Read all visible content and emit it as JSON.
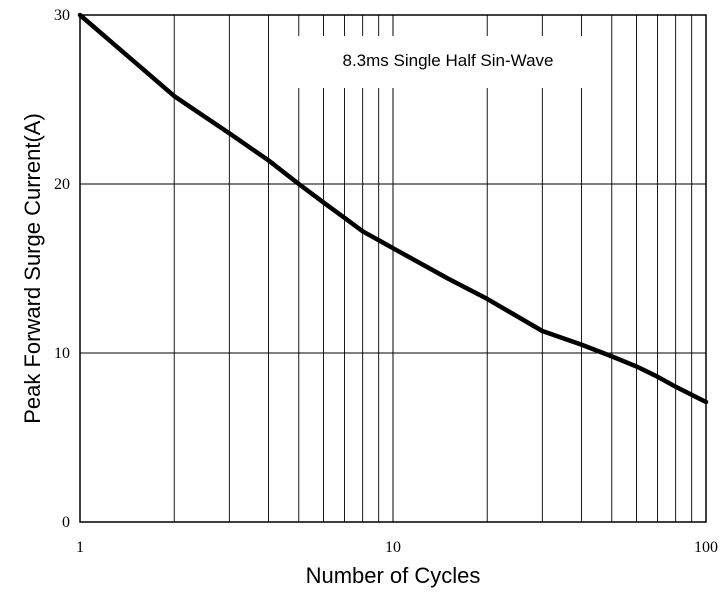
{
  "chart_data": {
    "type": "line",
    "xscale": "log",
    "xlim": [
      1,
      100
    ],
    "ylim": [
      0,
      30
    ],
    "x_ticks": [
      1,
      10,
      100
    ],
    "x_tick_labels": [
      "1",
      "10",
      "100"
    ],
    "y_ticks": [
      0,
      10,
      20,
      30
    ],
    "y_tick_labels": [
      "0",
      "10",
      "20",
      "30"
    ],
    "xlabel": "Number of Cycles",
    "ylabel": "Peak Forward Surge Current(A)",
    "annotation": "8.3ms Single Half Sin-Wave",
    "grid": true,
    "line_color": "#000000",
    "series": [
      {
        "x": [
          1,
          2,
          3,
          4,
          5,
          6,
          7,
          8,
          10,
          15,
          20,
          30,
          40,
          50,
          60,
          70,
          80,
          100
        ],
        "y": [
          30,
          25.2,
          23,
          21.4,
          20,
          18.9,
          18,
          17.2,
          16.2,
          14.4,
          13.2,
          11.3,
          10.5,
          9.8,
          9.2,
          8.6,
          8.0,
          7.1
        ]
      }
    ]
  }
}
